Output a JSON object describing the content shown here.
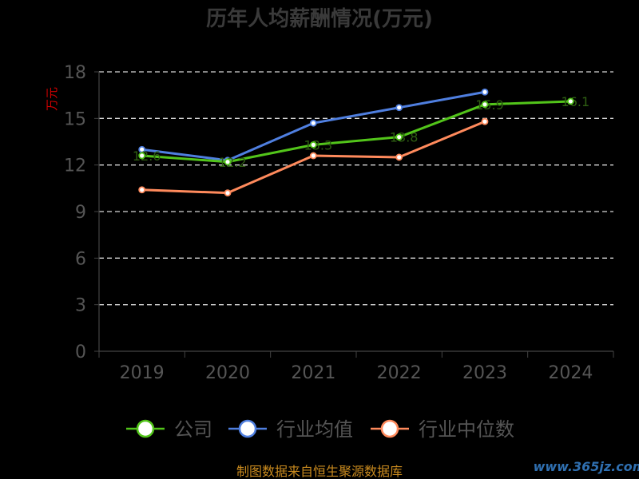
{
  "chart_data": {
    "type": "line",
    "title": "历年人均薪酬情况(万元)",
    "ylabel": "万元",
    "xlabel": "",
    "categories": [
      "2019",
      "2020",
      "2021",
      "2022",
      "2023",
      "2024"
    ],
    "ylim": [
      0,
      18
    ],
    "yticks": [
      "0",
      "3",
      "6",
      "9",
      "12",
      "15",
      "18"
    ],
    "grid": true,
    "legend_position": "bottom",
    "series": [
      {
        "name": "公司",
        "color": "#52c41a",
        "values": [
          12.6,
          12.2,
          13.3,
          13.8,
          15.9,
          16.1
        ],
        "data_labels": [
          "12.6",
          "12.2",
          "13.3",
          "13.8",
          "15.9",
          "16.1"
        ]
      },
      {
        "name": "行业均值",
        "color": "#4f7fe0",
        "values": [
          13.0,
          12.3,
          14.7,
          15.7,
          16.7,
          null
        ]
      },
      {
        "name": "行业中位数",
        "color": "#ff8a5c",
        "values": [
          10.4,
          10.2,
          12.6,
          12.5,
          14.8,
          null
        ]
      }
    ]
  },
  "footer": {
    "source": "制图数据来自恒生聚源数据库",
    "watermark": "www.365jz.com"
  }
}
